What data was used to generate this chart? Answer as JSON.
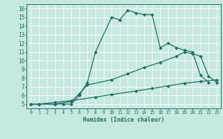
{
  "xlabel": "Humidex (Indice chaleur)",
  "bg_color": "#c5e8e0",
  "grid_color": "#ffffff",
  "line_color": "#1a6e62",
  "xlim": [
    -0.5,
    23.5
  ],
  "ylim": [
    4.5,
    16.5
  ],
  "xticks": [
    0,
    1,
    2,
    3,
    4,
    5,
    6,
    7,
    8,
    9,
    10,
    11,
    12,
    13,
    14,
    15,
    16,
    17,
    18,
    19,
    20,
    21,
    22,
    23
  ],
  "yticks": [
    5,
    6,
    7,
    8,
    9,
    10,
    11,
    12,
    13,
    14,
    15,
    16
  ],
  "curve1_x": [
    0,
    1,
    3,
    4,
    5,
    6,
    7,
    8,
    10,
    11,
    12,
    13,
    14,
    15,
    16,
    17,
    18,
    19,
    20,
    21,
    22
  ],
  "curve1_y": [
    5,
    5,
    5,
    5,
    5,
    6.0,
    7.5,
    11.0,
    15.0,
    14.7,
    15.8,
    15.5,
    15.3,
    15.3,
    11.5,
    12.0,
    11.5,
    11.2,
    11.0,
    8.3,
    7.5
  ],
  "curve2_x": [
    0,
    1,
    3,
    5,
    6,
    7,
    10,
    12,
    14,
    16,
    18,
    19,
    20,
    21,
    22,
    23
  ],
  "curve2_y": [
    5,
    5,
    5,
    5.3,
    6.2,
    7.2,
    7.8,
    8.5,
    9.2,
    9.8,
    10.5,
    11.0,
    10.8,
    10.5,
    8.2,
    7.5
  ],
  "curve3_x": [
    0,
    1,
    3,
    5,
    8,
    10,
    13,
    15,
    17,
    19,
    21,
    23
  ],
  "curve3_y": [
    5,
    5,
    5.2,
    5.4,
    5.8,
    6.1,
    6.5,
    6.8,
    7.1,
    7.4,
    7.6,
    7.8
  ]
}
